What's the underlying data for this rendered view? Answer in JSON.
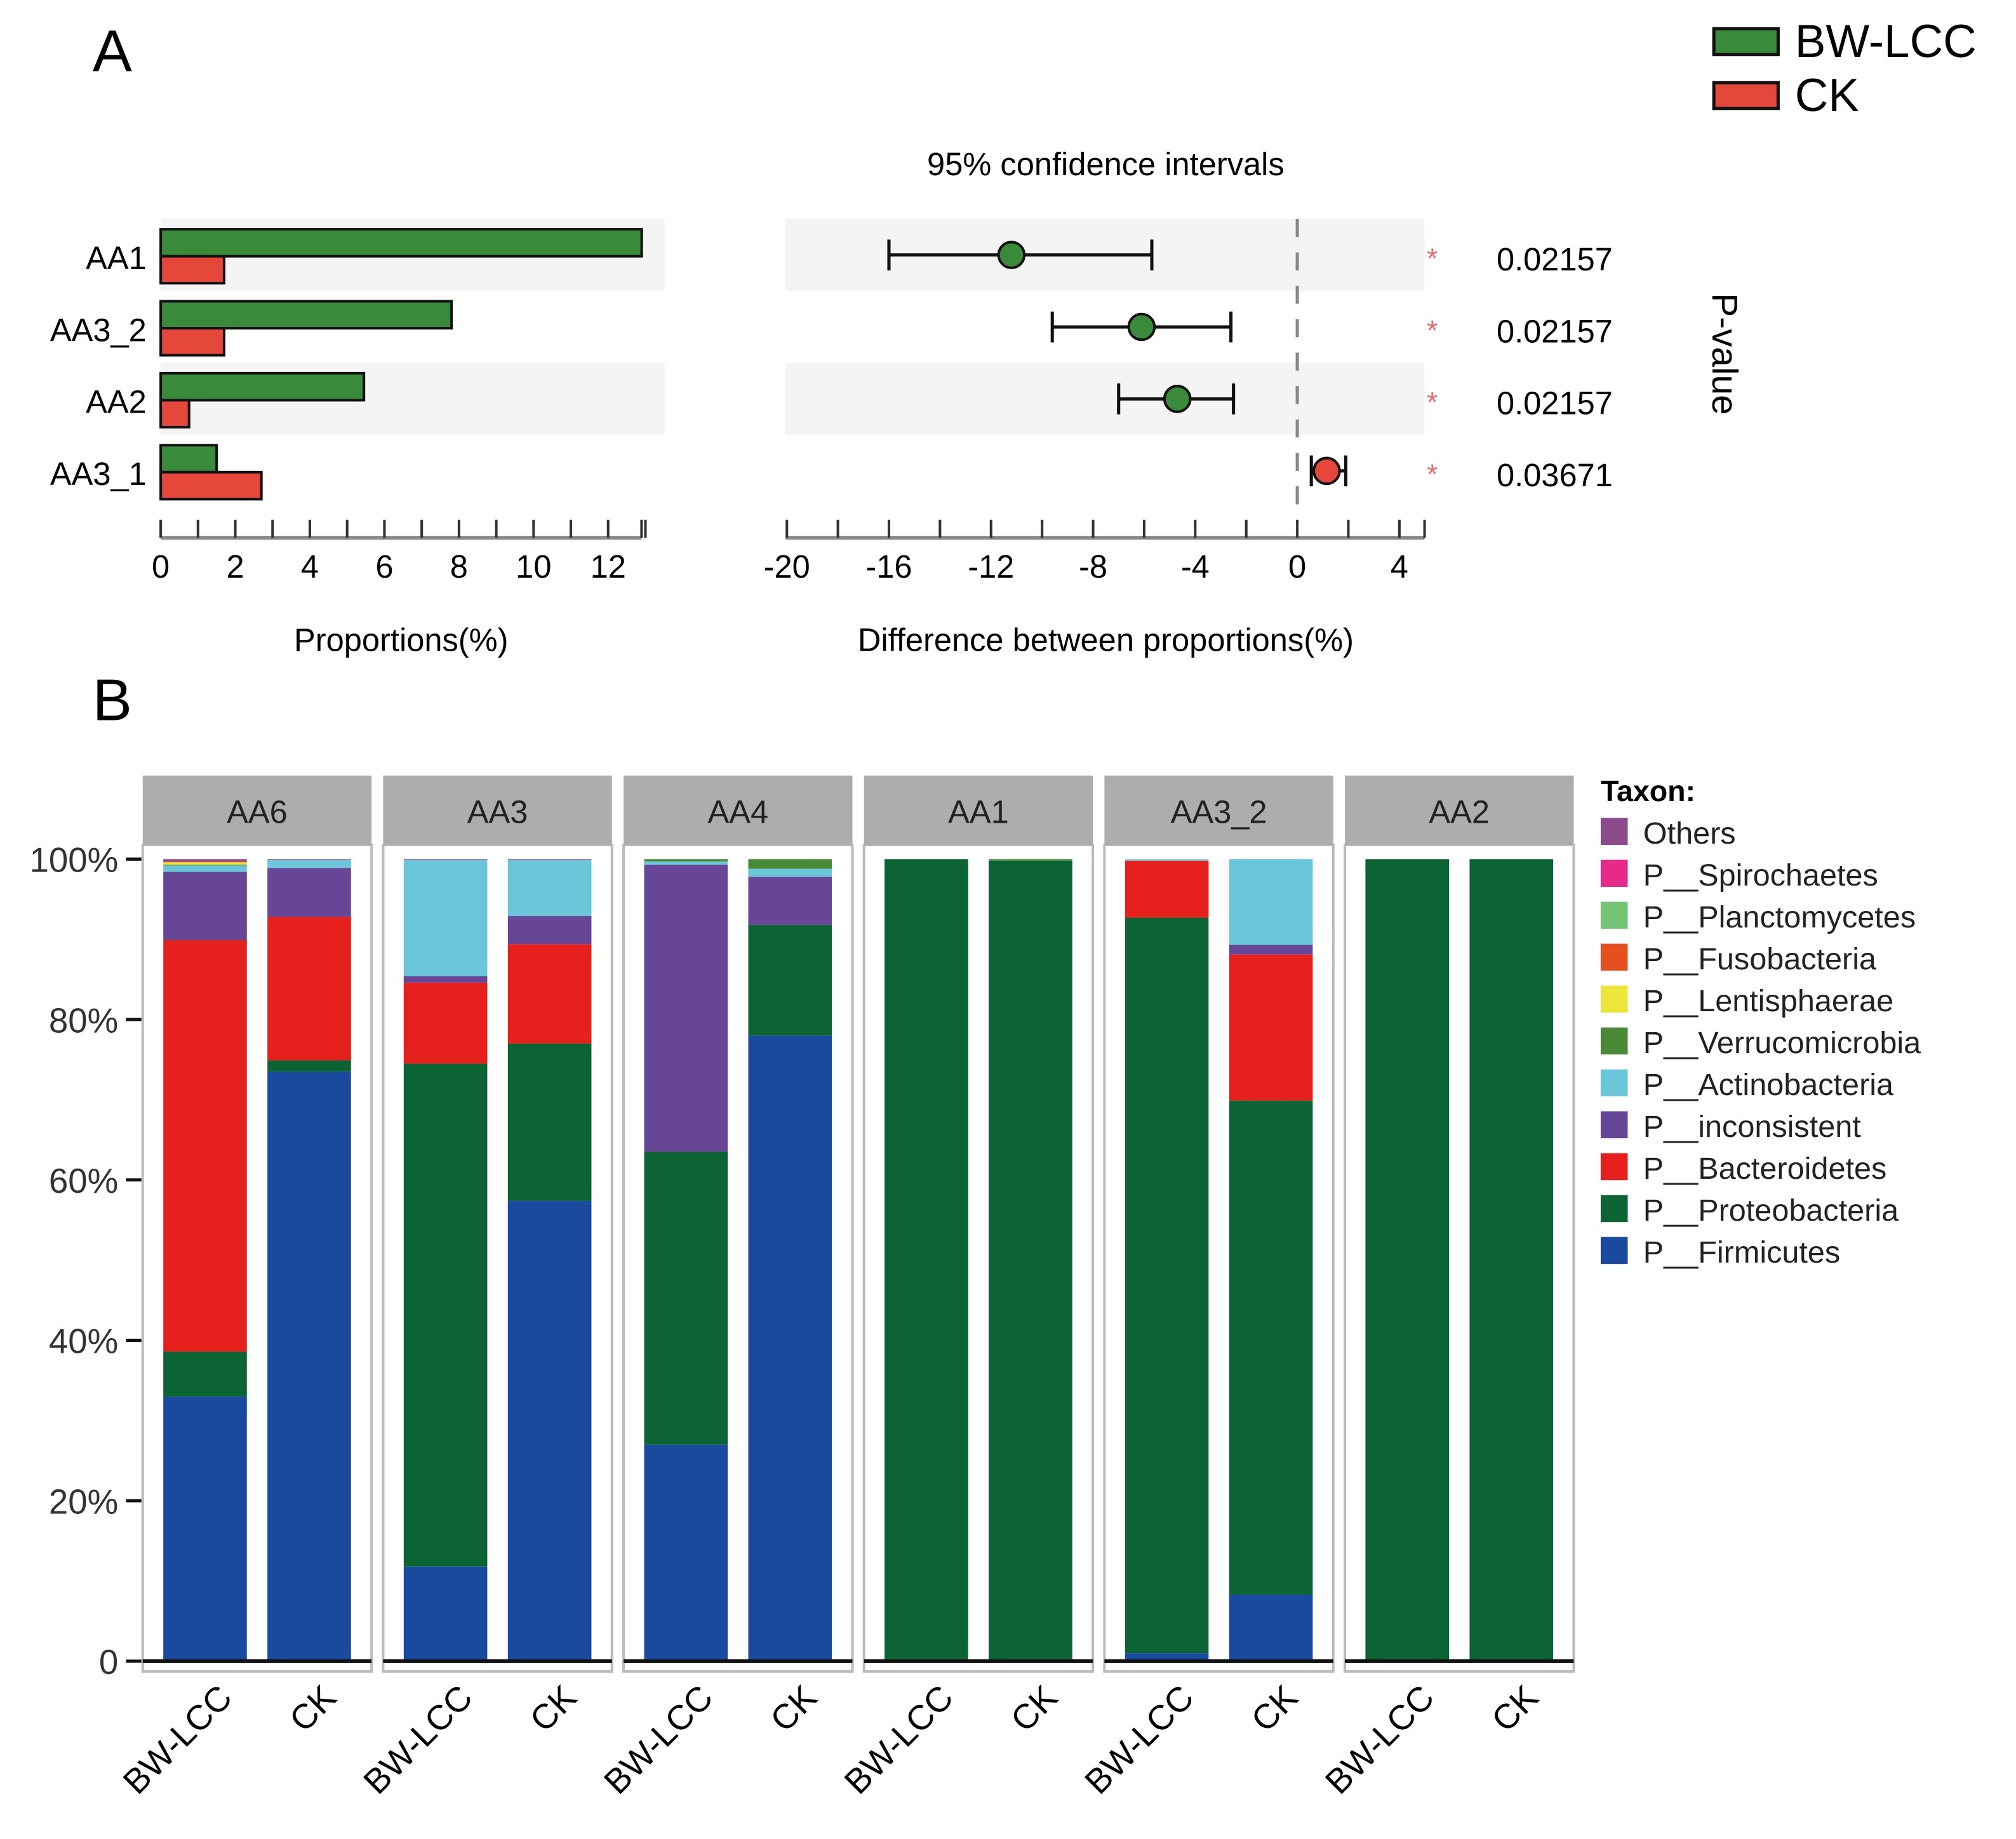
{
  "panel_labels": {
    "a": "A",
    "b": "B"
  },
  "chart_data": [
    {
      "type": "bar",
      "title": "",
      "xlabel": "Proportions(%)",
      "ylabel": "",
      "xlim": [
        0,
        12.9
      ],
      "xticks": [
        "0",
        "2",
        "4",
        "6",
        "8",
        "10",
        "12"
      ],
      "categories": [
        "AA1",
        "AA3_2",
        "AA2",
        "AA3_1"
      ],
      "series": [
        {
          "name": "BW-LCC",
          "color": "#3A8A3C",
          "values": [
            12.9,
            7.8,
            5.45,
            1.5
          ]
        },
        {
          "name": "CK",
          "color": "#E5473A",
          "values": [
            1.7,
            1.7,
            0.76,
            2.7
          ]
        }
      ],
      "legend": {
        "placement": "top-right",
        "entries": [
          "BW-LCC",
          "CK"
        ]
      }
    },
    {
      "type": "scatter",
      "title": "95% confidence intervals",
      "xlabel": "Difference between proportions(%)",
      "right_label": "P-value",
      "xlim": [
        -20,
        5
      ],
      "xticks": [
        "-20",
        "-16",
        "-12",
        "-8",
        "-4",
        "0",
        "4"
      ],
      "categories": [
        "AA1",
        "AA3_2",
        "AA2",
        "AA3_1"
      ],
      "diff": [
        -11.2,
        -6.1,
        -4.7,
        1.15
      ],
      "ci_low": [
        -16.0,
        -9.6,
        -7.0,
        0.55
      ],
      "ci_high": [
        -5.7,
        -2.6,
        -2.5,
        1.9
      ],
      "point_colors": [
        "#3A8A3C",
        "#3A8A3C",
        "#3A8A3C",
        "#E5473A"
      ],
      "significance": [
        "*",
        "*",
        "*",
        "*"
      ],
      "p_values": [
        "0.02157",
        "0.02157",
        "0.02157",
        "0.03671"
      ]
    },
    {
      "type": "bar",
      "stacked": true,
      "ylabel": "",
      "ylim": [
        0,
        100
      ],
      "yticks": [
        "0",
        "20%",
        "40%",
        "60%",
        "80%",
        "100%"
      ],
      "facets": [
        "AA6",
        "AA3",
        "AA4",
        "AA1",
        "AA3_2",
        "AA2"
      ],
      "groups": [
        "BW-LCC",
        "CK"
      ],
      "legend_title": "Taxon:",
      "taxa": [
        "Others",
        "P__Spirochaetes",
        "P__Planctomycetes",
        "P__Fusobacteria",
        "P__Lentisphaerae",
        "P__Verrucomicrobia",
        "P__Actinobacteria",
        "P__inconsistent",
        "P__Bacteroidetes",
        "P__Proteobacteria",
        "P__Firmicutes"
      ],
      "colors": [
        "#8A4A8C",
        "#E7298A",
        "#74C476",
        "#E6501E",
        "#EDE63A",
        "#4A8A37",
        "#6BC6D9",
        "#674597",
        "#E6201C",
        "#0C6435",
        "#1A4A9D"
      ],
      "stack_order_bottom_up": [
        "P__Firmicutes",
        "P__Proteobacteria",
        "P__Bacteroidetes",
        "P__inconsistent",
        "P__Actinobacteria",
        "P__Verrucomicrobia",
        "P__Lentisphaerae",
        "P__Fusobacteria",
        "P__Planctomycetes",
        "P__Spirochaetes",
        "Others"
      ],
      "values": {
        "AA6": {
          "BW-LCC": [
            33.0,
            5.6,
            51.3,
            8.5,
            0.8,
            0.1,
            0.3,
            0.1,
            0.0,
            0.0,
            0.3
          ],
          "CK": [
            73.5,
            1.4,
            17.9,
            6.1,
            1.0,
            0.0,
            0.0,
            0.0,
            0.0,
            0.0,
            0.1
          ]
        },
        "AA3": {
          "BW-LCC": [
            11.8,
            62.7,
            10.1,
            0.8,
            14.5,
            0.0,
            0.0,
            0.0,
            0.0,
            0.0,
            0.1
          ],
          "CK": [
            57.4,
            19.6,
            12.4,
            3.5,
            7.0,
            0.0,
            0.0,
            0.0,
            0.0,
            0.0,
            0.1
          ]
        },
        "AA4": {
          "BW-LCC": [
            27.0,
            36.5,
            0.0,
            35.8,
            0.4,
            0.3,
            0.0,
            0.0,
            0.0,
            0.0,
            0.0
          ],
          "CK": [
            78.0,
            13.8,
            0.0,
            6.0,
            1.0,
            1.2,
            0.0,
            0.0,
            0.0,
            0.0,
            0.0
          ]
        },
        "AA1": {
          "BW-LCC": [
            0.0,
            100.0,
            0.0,
            0.0,
            0.0,
            0.0,
            0.0,
            0.0,
            0.0,
            0.0,
            0.0
          ],
          "CK": [
            0.0,
            99.8,
            0.0,
            0.0,
            0.0,
            0.2,
            0.0,
            0.0,
            0.0,
            0.0,
            0.0
          ]
        },
        "AA3_2": {
          "BW-LCC": [
            1.0,
            91.7,
            7.1,
            0.0,
            0.2,
            0.0,
            0.0,
            0.0,
            0.0,
            0.0,
            0.0
          ],
          "CK": [
            8.3,
            61.6,
            18.2,
            1.2,
            10.7,
            0.0,
            0.0,
            0.0,
            0.0,
            0.0,
            0.0
          ]
        },
        "AA2": {
          "BW-LCC": [
            0.0,
            100.0,
            0.0,
            0.0,
            0.0,
            0.0,
            0.0,
            0.0,
            0.0,
            0.0,
            0.0
          ],
          "CK": [
            0.0,
            100.0,
            0.0,
            0.0,
            0.0,
            0.0,
            0.0,
            0.0,
            0.0,
            0.0,
            0.0
          ]
        }
      },
      "legend": {
        "placement": "right"
      }
    }
  ]
}
